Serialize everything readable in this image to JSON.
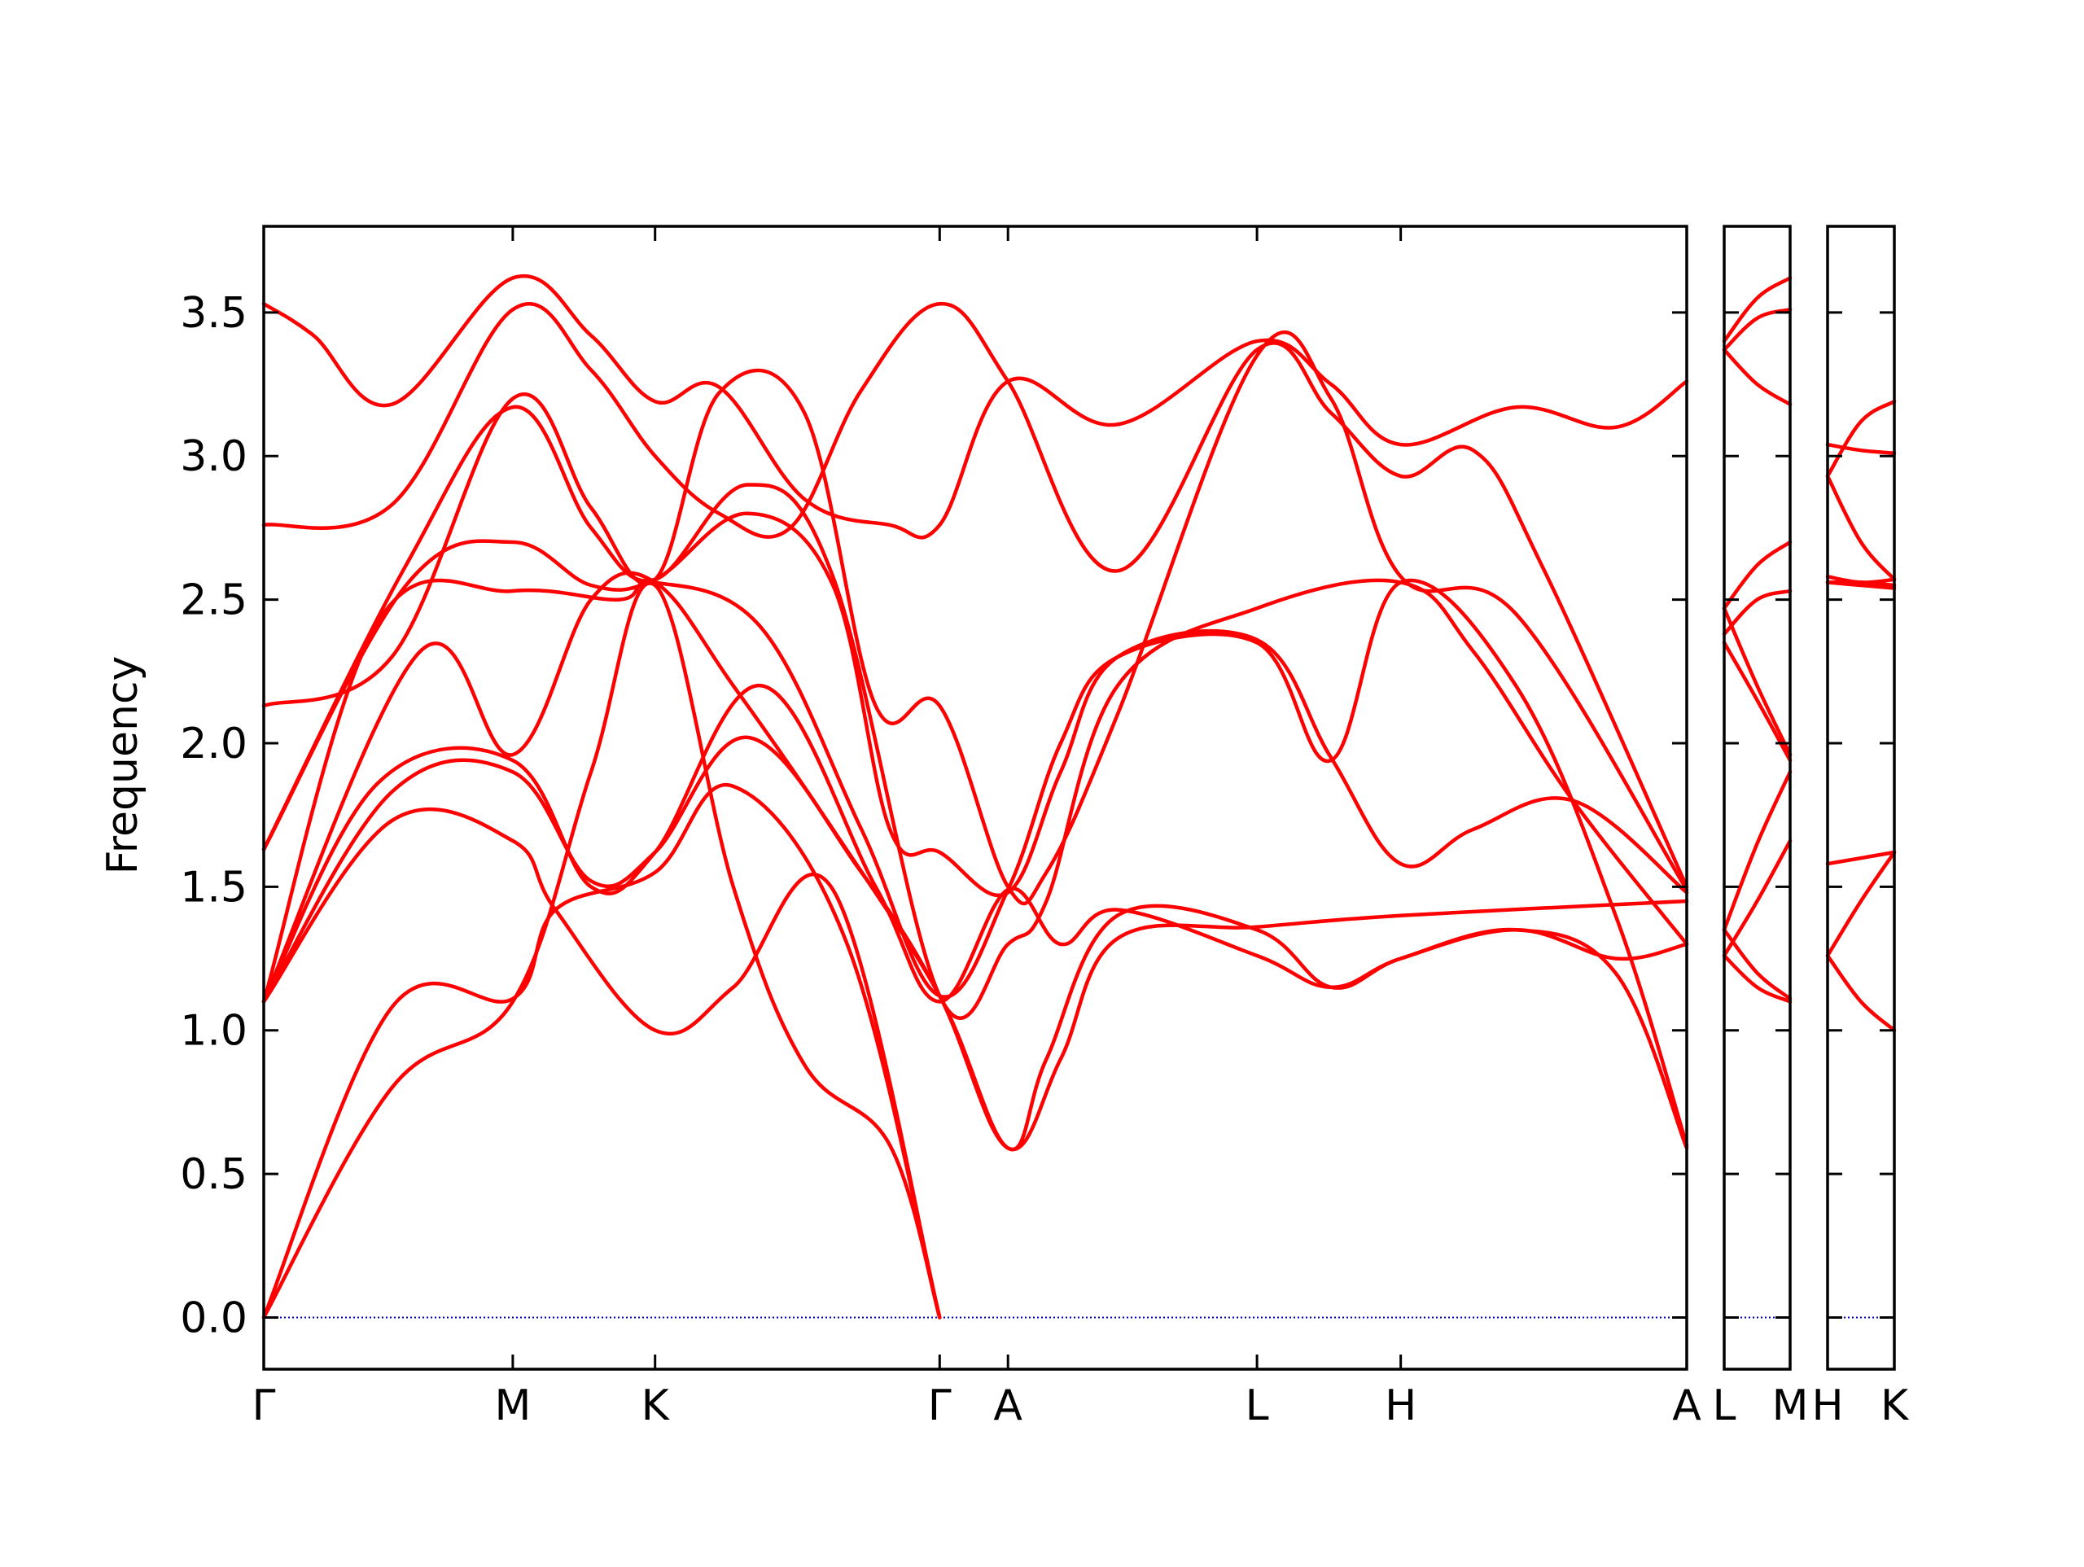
{
  "chart_data": {
    "type": "line",
    "title": "",
    "ylabel": "Frequency",
    "ylim": [
      -0.18,
      3.8
    ],
    "yticks": [
      0.0,
      0.5,
      1.0,
      1.5,
      2.0,
      2.5,
      3.0,
      3.5
    ],
    "ytick_labels": [
      "0.0",
      "0.5",
      "1.0",
      "1.5",
      "2.0",
      "2.5",
      "3.0",
      "3.5"
    ],
    "grid": false,
    "line_color": "#ff0000",
    "zero_line_color": "#0000cc",
    "panels": [
      {
        "id": "main",
        "xlim": [
          0,
          1
        ],
        "ticks": [
          {
            "x": 0.0,
            "label": "Γ"
          },
          {
            "x": 0.175,
            "label": "M"
          },
          {
            "x": 0.275,
            "label": "K"
          },
          {
            "x": 0.475,
            "label": "Γ"
          },
          {
            "x": 0.523,
            "label": "A"
          },
          {
            "x": 0.698,
            "label": "L"
          },
          {
            "x": 0.799,
            "label": "H"
          },
          {
            "x": 1.0,
            "label": "A"
          }
        ],
        "series": [
          {
            "x": [
              0,
              0.035,
              0.09,
              0.175,
              0.23,
              0.275,
              0.32,
              0.38,
              0.44,
              0.475,
              0.523,
              0.6,
              0.698,
              0.75,
              0.799,
              0.88,
              0.95,
              1.0
            ],
            "values": [
              3.53,
              3.42,
              3.18,
              3.62,
              3.42,
              3.19,
              3.24,
              2.85,
              2.76,
              2.76,
              3.26,
              3.11,
              3.4,
              3.25,
              3.04,
              3.17,
              3.1,
              3.26
            ]
          },
          {
            "x": [
              0,
              0.09,
              0.175,
              0.23,
              0.275,
              0.32,
              0.37,
              0.42,
              0.475,
              0.523,
              0.6,
              0.698,
              0.75,
              0.799,
              0.85,
              0.9,
              1.0
            ],
            "values": [
              2.76,
              2.83,
              3.51,
              3.3,
              3.0,
              2.8,
              2.75,
              3.23,
              3.53,
              3.26,
              2.6,
              3.37,
              3.15,
              2.93,
              3.02,
              2.6,
              1.5
            ]
          },
          {
            "x": [
              0,
              0.09,
              0.175,
              0.23,
              0.275,
              0.32,
              0.38,
              0.43,
              0.475,
              0.523,
              0.55,
              0.6,
              0.698,
              0.75,
              0.799,
              0.88,
              1.0
            ],
            "values": [
              2.13,
              2.3,
              3.2,
              2.82,
              2.57,
              3.22,
              3.15,
              2.13,
              2.13,
              1.5,
              1.55,
              2.1,
              3.35,
              3.2,
              2.58,
              2.45,
              1.49
            ]
          },
          {
            "x": [
              0,
              0.1,
              0.175,
              0.23,
              0.275,
              0.34,
              0.4,
              0.475,
              0.523,
              0.55,
              0.6,
              0.698,
              0.799,
              0.85,
              0.92,
              1.0
            ],
            "values": [
              1.63,
              2.62,
              3.17,
              2.75,
              2.57,
              2.9,
              2.58,
              1.12,
              1.3,
              1.45,
              2.2,
              2.47,
              2.56,
              2.32,
              1.8,
              1.3
            ]
          },
          {
            "x": [
              0,
              0.1,
              0.175,
              0.23,
              0.275,
              0.34,
              0.4,
              0.44,
              0.475,
              0.523,
              0.56,
              0.6,
              0.698,
              0.75,
              0.799,
              0.85,
              0.92,
              1.0
            ],
            "values": [
              1.63,
              2.55,
              2.7,
              2.55,
              2.57,
              2.8,
              2.55,
              1.7,
              1.62,
              1.48,
              1.9,
              2.3,
              2.36,
              1.95,
              1.58,
              1.7,
              1.8,
              1.48
            ]
          },
          {
            "x": [
              0,
              0.08,
              0.175,
              0.25,
              0.275,
              0.35,
              0.42,
              0.475,
              0.523,
              0.56,
              0.6,
              0.698,
              0.75,
              0.799,
              0.88,
              0.95,
              1.0
            ],
            "values": [
              1.1,
              2.42,
              2.53,
              2.5,
              2.56,
              2.4,
              1.7,
              1.12,
              1.49,
              2.0,
              2.3,
              2.35,
              1.94,
              2.56,
              2.2,
              1.4,
              0.6
            ]
          },
          {
            "x": [
              0,
              0.11,
              0.175,
              0.23,
              0.275,
              0.33,
              0.4,
              0.475,
              0.523,
              0.55,
              0.6,
              0.698,
              0.75,
              0.799,
              0.88,
              0.95,
              1.0
            ],
            "values": [
              1.1,
              2.32,
              1.96,
              2.5,
              2.56,
              2.2,
              1.7,
              1.12,
              0.59,
              0.9,
              1.4,
              1.35,
              1.15,
              1.25,
              1.35,
              1.2,
              0.59
            ]
          },
          {
            "x": [
              0,
              0.08,
              0.175,
              0.23,
              0.275,
              0.35,
              0.43,
              0.475,
              0.523,
              0.56,
              0.6,
              0.698,
              0.75,
              0.799,
              0.88,
              0.95,
              1.0
            ],
            "values": [
              1.1,
              1.86,
              1.94,
              1.5,
              1.62,
              2.2,
              1.5,
              1.1,
              1.49,
              1.3,
              1.42,
              1.26,
              1.15,
              1.25,
              1.35,
              1.25,
              1.3
            ]
          },
          {
            "x": [
              0,
              0.09,
              0.175,
              0.23,
              0.275,
              0.34,
              0.42,
              0.475,
              0.523,
              0.56,
              0.6,
              0.698,
              0.8,
              1.0
            ],
            "values": [
              1.1,
              1.83,
              1.9,
              1.52,
              1.62,
              2.02,
              1.55,
              1.12,
              0.59,
              0.9,
              1.32,
              1.36,
              1.4,
              1.45
            ]
          },
          {
            "x": [
              0,
              0.09,
              0.175,
              0.205,
              0.275,
              0.33,
              0.4,
              0.475
            ],
            "values": [
              1.1,
              1.73,
              1.66,
              1.42,
              1.0,
              1.15,
              1.49,
              0.0
            ]
          },
          {
            "x": [
              0,
              0.09,
              0.175,
              0.205,
              0.275,
              0.33,
              0.41,
              0.475
            ],
            "values": [
              0.0,
              1.08,
              1.11,
              1.42,
              1.55,
              1.85,
              1.3,
              0.0
            ]
          },
          {
            "x": [
              0,
              0.09,
              0.175,
              0.23,
              0.275,
              0.33,
              0.38,
              0.44,
              0.475
            ],
            "values": [
              0.0,
              0.8,
              1.1,
              1.9,
              2.55,
              1.5,
              0.88,
              0.6,
              0.0
            ]
          }
        ]
      },
      {
        "id": "L-M",
        "xlim": [
          0,
          1
        ],
        "ticks": [
          {
            "x": 0.0,
            "label": "L"
          },
          {
            "x": 1.0,
            "label": "M"
          }
        ],
        "series": [
          {
            "x": [
              0,
              0.5,
              1
            ],
            "values": [
              3.4,
              3.55,
              3.62
            ]
          },
          {
            "x": [
              0,
              0.5,
              1
            ],
            "values": [
              3.37,
              3.48,
              3.51
            ]
          },
          {
            "x": [
              0,
              0.5,
              1
            ],
            "values": [
              3.37,
              3.25,
              3.18
            ]
          },
          {
            "x": [
              0,
              0.5,
              1
            ],
            "values": [
              2.47,
              2.62,
              2.7
            ]
          },
          {
            "x": [
              0,
              0.5,
              1
            ],
            "values": [
              2.38,
              2.5,
              2.53
            ]
          },
          {
            "x": [
              0,
              0.5,
              1
            ],
            "values": [
              2.47,
              2.2,
              1.96
            ]
          },
          {
            "x": [
              0,
              0.5,
              1
            ],
            "values": [
              2.35,
              2.15,
              1.94
            ]
          },
          {
            "x": [
              0,
              0.5,
              1
            ],
            "values": [
              1.35,
              1.65,
              1.9
            ]
          },
          {
            "x": [
              0,
              0.5,
              1
            ],
            "values": [
              1.26,
              1.45,
              1.66
            ]
          },
          {
            "x": [
              0,
              0.5,
              1
            ],
            "values": [
              1.35,
              1.2,
              1.11
            ]
          },
          {
            "x": [
              0,
              0.5,
              1
            ],
            "values": [
              1.26,
              1.15,
              1.1
            ]
          }
        ]
      },
      {
        "id": "H-K",
        "xlim": [
          0,
          1
        ],
        "ticks": [
          {
            "x": 0.0,
            "label": "H"
          },
          {
            "x": 1.0,
            "label": "K"
          }
        ],
        "series": [
          {
            "x": [
              0,
              0.5,
              1
            ],
            "values": [
              2.93,
              3.12,
              3.19
            ]
          },
          {
            "x": [
              0,
              0.5,
              1
            ],
            "values": [
              3.04,
              3.02,
              3.01
            ]
          },
          {
            "x": [
              0,
              0.5,
              1
            ],
            "values": [
              2.93,
              2.7,
              2.57
            ]
          },
          {
            "x": [
              0,
              0.5,
              1
            ],
            "values": [
              2.58,
              2.56,
              2.57
            ]
          },
          {
            "x": [
              0,
              0.5,
              1
            ],
            "values": [
              2.56,
              2.56,
              2.55
            ]
          },
          {
            "x": [
              0,
              0.5,
              1
            ],
            "values": [
              2.56,
              2.55,
              2.54
            ]
          },
          {
            "x": [
              0,
              0.5,
              1
            ],
            "values": [
              1.58,
              1.6,
              1.62
            ]
          },
          {
            "x": [
              0,
              0.5,
              1
            ],
            "values": [
              1.26,
              1.45,
              1.62
            ]
          },
          {
            "x": [
              0,
              0.5,
              1
            ],
            "values": [
              1.26,
              1.1,
              1.0
            ]
          }
        ]
      }
    ]
  }
}
